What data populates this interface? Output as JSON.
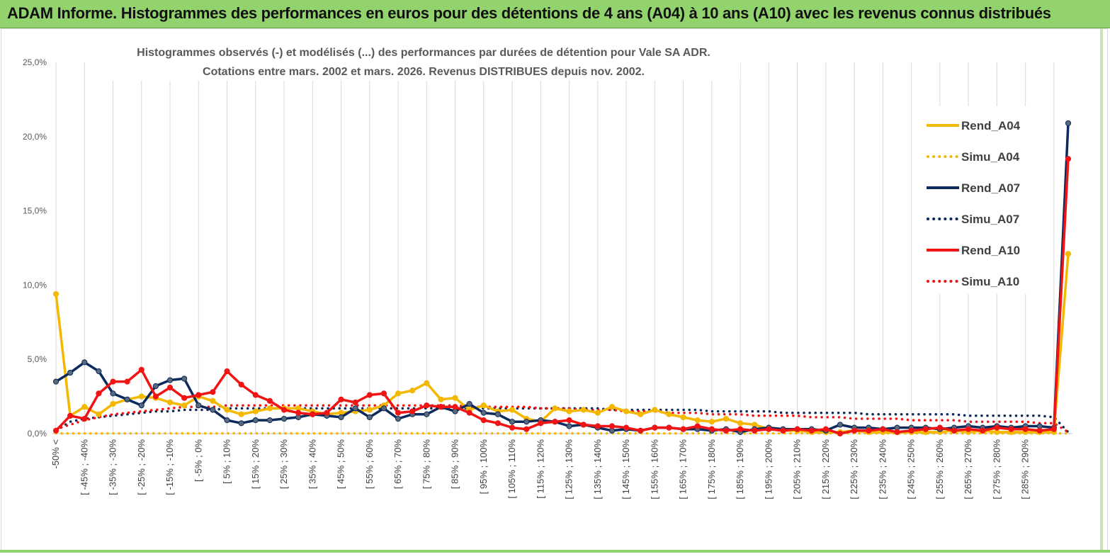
{
  "banner": {
    "title": "ADAM Informe. Histogrammes des performances en euros pour des détentions de 4 ans (A04) à 10 ans (A10) avec les revenus connus distribués"
  },
  "colors": {
    "banner_bg": "#92d36e",
    "a04": "#f5b800",
    "a07": "#0d2a5c",
    "a07_marker": "#5a6a7a",
    "a10": "#f01414",
    "grid": "#d9d9d9"
  },
  "chart_data": {
    "type": "line",
    "title_line1": "Histogrammes observés (-) et modélisés (...) des performances par durées de détention pour Vale SA ADR.",
    "title_line2": "Cotations entre mars. 2002 et mars. 2026. Revenus DISTRIBUES depuis nov. 2002.",
    "ylim": [
      0,
      25
    ],
    "yticks": [
      "0,0%",
      "5,0%",
      "10,0%",
      "15,0%",
      "20,0%",
      "25,0%"
    ],
    "grid": true,
    "legend_position": "right",
    "x_tick_labels": [
      "-50% <",
      "[ -45% ; -40%",
      "[ -35% ; -30%",
      "[ -25% ; -20%",
      "[ -15% ; -10%",
      "[ -5% ; 0%",
      "[ 5% ; 10%",
      "[ 15% ; 20%",
      "[ 25% ; 30%",
      "[ 35% ; 40%",
      "[ 45% ; 50%",
      "[ 55% ; 60%",
      "[ 65% ; 70%",
      "[ 75% ; 80%",
      "[ 85% ; 90%",
      "[ 95% ; 100%",
      "[ 105% ; 110%",
      "[ 115% ; 120%",
      "[ 125% ; 130%",
      "[ 135% ; 140%",
      "[ 145% ; 150%",
      "[ 155% ; 160%",
      "[ 165% ; 170%",
      "[ 175% ; 180%",
      "[ 185% ; 190%",
      "[ 195% ; 200%",
      "[ 205% ; 210%",
      "[ 215% ; 220%",
      "[ 225% ; 230%",
      "[ 235% ; 240%",
      "[ 245% ; 250%",
      "[ 255% ; 260%",
      "[ 265% ; 270%",
      "[ 275% ; 280%",
      "[ 285% ; 290%"
    ],
    "x_tick_every": 2,
    "series": [
      {
        "name": "Rend_A04",
        "style": "solid",
        "color": "#f5b800",
        "values": [
          9.4,
          1.2,
          1.8,
          1.3,
          2.0,
          2.3,
          2.5,
          2.4,
          2.1,
          1.9,
          2.5,
          2.2,
          1.6,
          1.3,
          1.5,
          1.7,
          1.7,
          1.7,
          1.5,
          1.3,
          1.4,
          1.5,
          1.6,
          1.9,
          2.7,
          2.9,
          3.4,
          2.3,
          2.4,
          1.6,
          1.9,
          1.5,
          1.6,
          1.0,
          0.8,
          1.7,
          1.5,
          1.6,
          1.4,
          1.8,
          1.5,
          1.3,
          1.6,
          1.3,
          1.1,
          0.9,
          0.8,
          1.0,
          0.7,
          0.6,
          0.3,
          0.2,
          0.2,
          0.1,
          0.1,
          0.1,
          0.2,
          0.1,
          0.1,
          0.1,
          0.1,
          0.1,
          0.1,
          0.2,
          0.1,
          0.2,
          0.1,
          0.1,
          0.1,
          0.1,
          0.1,
          12.1
        ]
      },
      {
        "name": "Simu_A04",
        "style": "dotted",
        "color": "#f5b800",
        "values": [
          0.02,
          0.02,
          0.02,
          0.02,
          0.02,
          0.02,
          0.02,
          0.02,
          0.02,
          0.02,
          0.02,
          0.02,
          0.02,
          0.02,
          0.02,
          0.02,
          0.02,
          0.02,
          0.02,
          0.02,
          0.02,
          0.02,
          0.02,
          0.02,
          0.02,
          0.02,
          0.02,
          0.02,
          0.02,
          0.02,
          0.02,
          0.02,
          0.02,
          0.02,
          0.02,
          0.02,
          0.02,
          0.02,
          0.02,
          0.02,
          0.02,
          0.02,
          0.02,
          0.02,
          0.02,
          0.02,
          0.02,
          0.02,
          0.02,
          0.02,
          0.02,
          0.02,
          0.02,
          0.02,
          0.02,
          0.02,
          0.02,
          0.02,
          0.02,
          0.02,
          0.02,
          0.02,
          0.02,
          0.02,
          0.02,
          0.02,
          0.02,
          0.02,
          0.02,
          0.02,
          0.02,
          0.02
        ]
      },
      {
        "name": "Rend_A07",
        "style": "solid",
        "color": "#0d2a5c",
        "values": [
          3.5,
          4.1,
          4.8,
          4.2,
          2.7,
          2.3,
          1.9,
          3.2,
          3.6,
          3.7,
          1.9,
          1.6,
          0.9,
          0.7,
          0.9,
          0.9,
          1.0,
          1.1,
          1.3,
          1.2,
          1.1,
          1.7,
          1.1,
          1.7,
          1.0,
          1.3,
          1.3,
          1.8,
          1.5,
          2.0,
          1.4,
          1.3,
          0.8,
          0.8,
          0.9,
          0.8,
          0.5,
          0.6,
          0.4,
          0.2,
          0.3,
          0.2,
          0.4,
          0.4,
          0.3,
          0.3,
          0.2,
          0.3,
          0.1,
          0.3,
          0.4,
          0.3,
          0.3,
          0.3,
          0.2,
          0.6,
          0.4,
          0.4,
          0.3,
          0.4,
          0.4,
          0.4,
          0.3,
          0.4,
          0.5,
          0.4,
          0.5,
          0.4,
          0.5,
          0.5,
          0.4,
          20.9
        ]
      },
      {
        "name": "Simu_A07",
        "style": "dotted",
        "color": "#0d2a5c",
        "values": [
          0.2,
          0.8,
          1.0,
          1.1,
          1.2,
          1.3,
          1.4,
          1.5,
          1.5,
          1.6,
          1.6,
          1.6,
          1.7,
          1.7,
          1.7,
          1.7,
          1.7,
          1.7,
          1.7,
          1.7,
          1.7,
          1.7,
          1.7,
          1.7,
          1.7,
          1.7,
          1.7,
          1.7,
          1.7,
          1.7,
          1.7,
          1.7,
          1.7,
          1.7,
          1.7,
          1.7,
          1.7,
          1.7,
          1.7,
          1.6,
          1.6,
          1.6,
          1.6,
          1.6,
          1.6,
          1.6,
          1.5,
          1.5,
          1.5,
          1.5,
          1.5,
          1.4,
          1.4,
          1.4,
          1.4,
          1.4,
          1.4,
          1.3,
          1.3,
          1.3,
          1.3,
          1.3,
          1.3,
          1.3,
          1.2,
          1.2,
          1.2,
          1.2,
          1.2,
          1.2,
          1.1,
          0.1
        ]
      },
      {
        "name": "Rend_A10",
        "style": "solid",
        "color": "#f01414",
        "values": [
          0.2,
          1.2,
          1.0,
          2.7,
          3.5,
          3.5,
          4.3,
          2.5,
          3.1,
          2.4,
          2.6,
          2.8,
          4.2,
          3.3,
          2.6,
          2.2,
          1.6,
          1.4,
          1.3,
          1.4,
          2.3,
          2.1,
          2.6,
          2.7,
          1.4,
          1.5,
          1.9,
          1.8,
          1.8,
          1.4,
          0.9,
          0.7,
          0.4,
          0.3,
          0.7,
          0.8,
          0.9,
          0.6,
          0.5,
          0.5,
          0.4,
          0.2,
          0.4,
          0.4,
          0.3,
          0.5,
          0.3,
          0.2,
          0.3,
          0.2,
          0.3,
          0.2,
          0.3,
          0.2,
          0.3,
          0.0,
          0.2,
          0.2,
          0.3,
          0.1,
          0.2,
          0.3,
          0.4,
          0.2,
          0.3,
          0.2,
          0.4,
          0.3,
          0.3,
          0.2,
          0.3,
          18.5
        ]
      },
      {
        "name": "Simu_A10",
        "style": "dotted",
        "color": "#f01414",
        "values": [
          0.3,
          0.6,
          0.9,
          1.1,
          1.3,
          1.4,
          1.5,
          1.6,
          1.7,
          1.8,
          1.8,
          1.8,
          1.9,
          1.9,
          1.9,
          1.9,
          1.9,
          1.9,
          1.9,
          1.9,
          1.9,
          1.9,
          1.9,
          1.9,
          1.9,
          1.9,
          1.9,
          1.9,
          1.9,
          1.8,
          1.8,
          1.8,
          1.8,
          1.8,
          1.7,
          1.7,
          1.7,
          1.6,
          1.6,
          1.6,
          1.5,
          1.5,
          1.5,
          1.4,
          1.4,
          1.4,
          1.3,
          1.3,
          1.3,
          1.2,
          1.2,
          1.2,
          1.2,
          1.1,
          1.1,
          1.1,
          1.0,
          1.0,
          1.0,
          1.0,
          0.9,
          0.9,
          0.9,
          0.9,
          0.8,
          0.8,
          0.8,
          0.8,
          0.8,
          0.7,
          0.7,
          0.1
        ]
      }
    ]
  }
}
